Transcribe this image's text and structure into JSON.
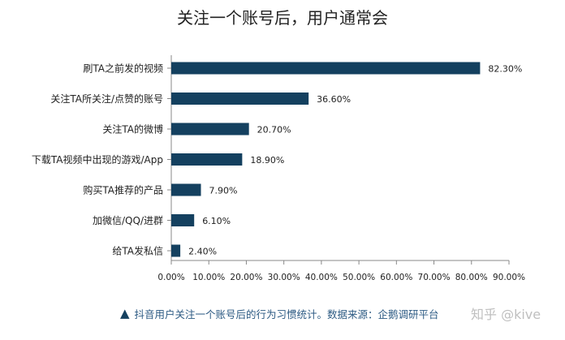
{
  "caption": {
    "icon": "triangle-up-icon",
    "text": "抖音用户关注一个账号后的行为习惯统计。数据来源：企鹅调研平台"
  },
  "watermark": "知乎 @kive",
  "colors": {
    "bar": "#14405f",
    "axis": "#888888",
    "text": "#222222",
    "caption": "#2c5a83"
  },
  "chart_data": {
    "type": "bar",
    "orientation": "horizontal",
    "title": "关注一个账号后，用户通常会",
    "categories": [
      "刷TA之前发的视频",
      "关注TA所关注/点赞的账号",
      "关注TA的微博",
      "下载TA视频中出现的游戏/App",
      "购买TA推荐的产品",
      "加微信/QQ/进群",
      "给TA发私信"
    ],
    "values": [
      82.3,
      36.6,
      20.7,
      18.9,
      7.9,
      6.1,
      2.4
    ],
    "value_labels": [
      "82.30%",
      "36.60%",
      "20.70%",
      "18.90%",
      "7.90%",
      "6.10%",
      "2.40%"
    ],
    "xlim": [
      0,
      90
    ],
    "xticks": [
      0,
      10,
      20,
      30,
      40,
      50,
      60,
      70,
      80,
      90
    ],
    "xtick_labels": [
      "0.00%",
      "10.00%",
      "20.00%",
      "30.00%",
      "40.00%",
      "50.00%",
      "60.00%",
      "70.00%",
      "80.00%",
      "90.00%"
    ],
    "xlabel": "",
    "ylabel": "",
    "grid": false,
    "legend": "none"
  }
}
